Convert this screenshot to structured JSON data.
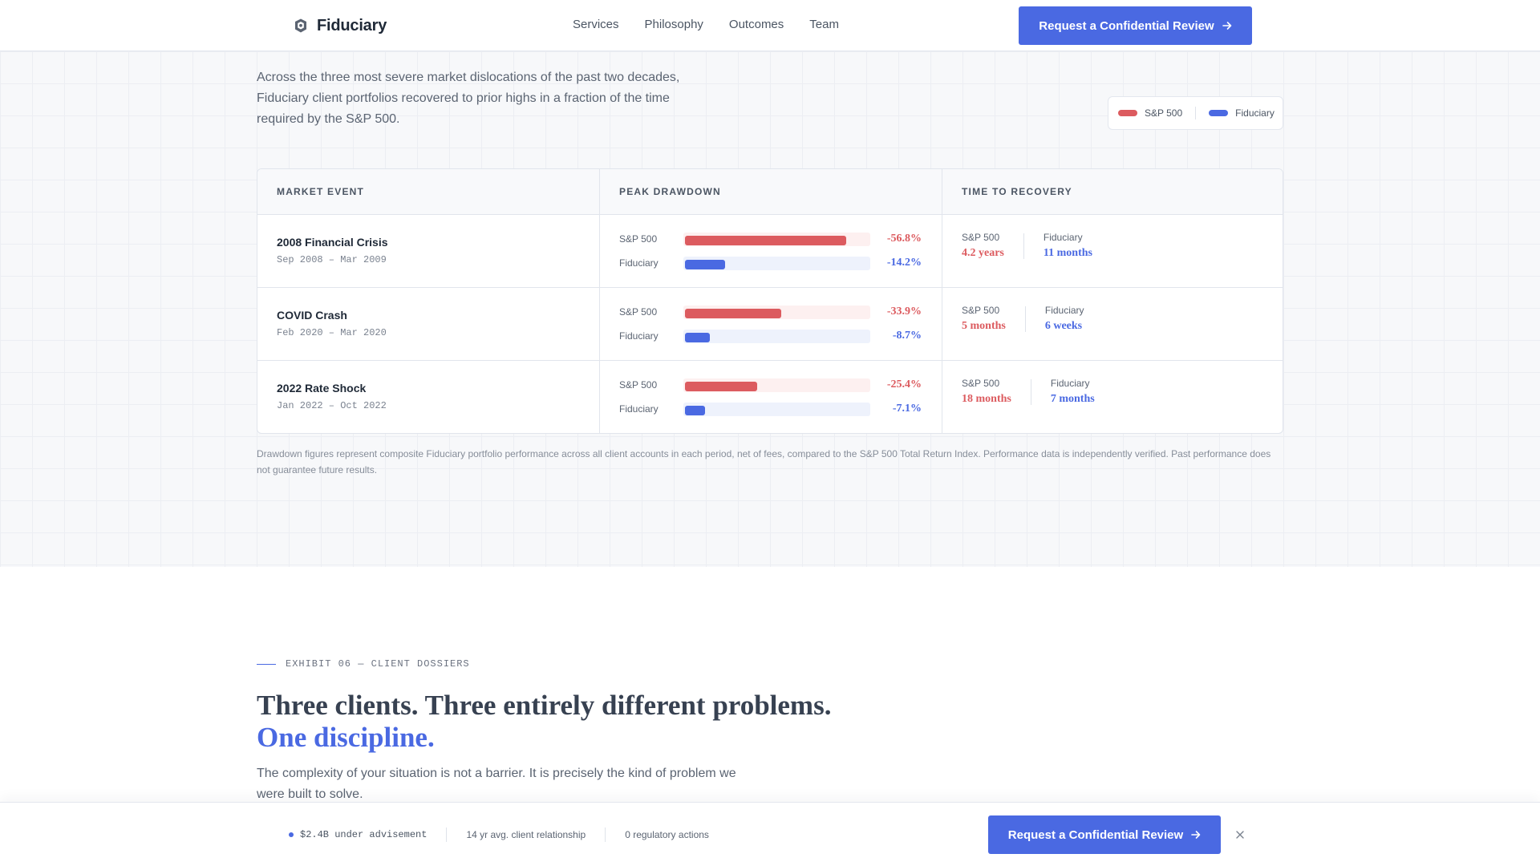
{
  "nav": {
    "brand": "Fiduciary",
    "brand_icon": "shield-icon",
    "links": [
      "Services",
      "Philosophy",
      "Outcomes",
      "Team"
    ],
    "cta": "Request a Confidential Review",
    "cta_icon": "arrow-right-icon"
  },
  "recovery": {
    "intro": "Across the three most severe market dislocations of the past two decades, Fiduciary client portfolios recovered to prior highs in a fraction of the time required by the S&P 500.",
    "legend": [
      {
        "label": "S&P 500",
        "color": "#dc5b5f"
      },
      {
        "label": "Fiduciary",
        "color": "#4a69e2"
      }
    ],
    "headers": [
      "MARKET EVENT",
      "PEAK DRAWDOWN",
      "TIME TO RECOVERY"
    ],
    "rows": [
      {
        "event": "2008 Financial Crisis",
        "dates": "Sep 2008 – Mar 2009",
        "sp_label": "S&P 500",
        "fid_label": "Fiduciary",
        "sp_drawdown": "-56.8%",
        "fid_drawdown": "-14.2%",
        "sp_drawdown_pct": 56.8,
        "fid_drawdown_pct": 14.2,
        "sp_recovery": "4.2 years",
        "fid_recovery": "11 months"
      },
      {
        "event": "COVID Crash",
        "dates": "Feb 2020 – Mar 2020",
        "sp_label": "S&P 500",
        "fid_label": "Fiduciary",
        "sp_drawdown": "-33.9%",
        "fid_drawdown": "-8.7%",
        "sp_drawdown_pct": 33.9,
        "fid_drawdown_pct": 8.7,
        "sp_recovery": "5 months",
        "fid_recovery": "6 weeks"
      },
      {
        "event": "2022 Rate Shock",
        "dates": "Jan 2022 – Oct 2022",
        "sp_label": "S&P 500",
        "fid_label": "Fiduciary",
        "sp_drawdown": "-25.4%",
        "fid_drawdown": "-7.1%",
        "sp_drawdown_pct": 25.4,
        "fid_drawdown_pct": 7.1,
        "sp_recovery": "18 months",
        "fid_recovery": "7 months"
      }
    ],
    "footnote": "Drawdown figures represent composite Fiduciary portfolio performance across all client accounts in each period, net of fees, compared to the S&P 500 Total Return Index. Performance data is independently verified. Past performance does not guarantee future results."
  },
  "exhibit": {
    "eyebrow": "EXHIBIT 06 — CLIENT DOSSIERS",
    "headline": "Three clients. Three entirely different problems.",
    "headline_accent": "One discipline.",
    "subcopy": "The complexity of your situation is not a barrier. It is precisely the kind of problem we were built to solve."
  },
  "sticky": {
    "stats": [
      "$2.4B under advisement",
      "14 yr avg. client relationship",
      "0 regulatory actions"
    ],
    "cta": "Request a Confidential Review",
    "close_icon": "close-icon"
  },
  "colors": {
    "accent": "#4a69e2",
    "sp500": "#dc5b5f",
    "sp500_track": "#fdf0f0",
    "fiduciary_track": "#eef2fc"
  }
}
